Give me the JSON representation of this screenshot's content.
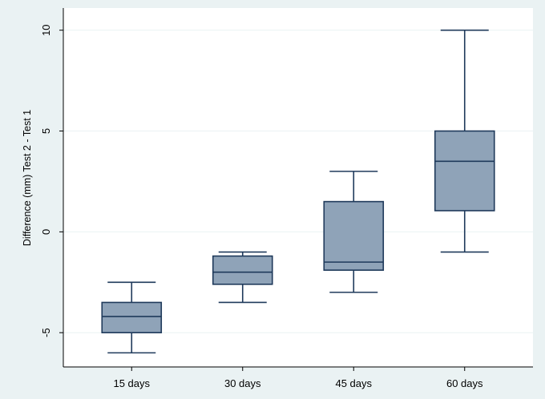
{
  "chart_data": {
    "type": "boxplot",
    "title": "",
    "xlabel": "",
    "ylabel": "Difference (mm) Test 2 - Test 1",
    "ylim": [
      -6.7,
      11.1
    ],
    "yticks": [
      -5,
      0,
      5,
      10
    ],
    "ytick_labels": [
      "-5",
      "0",
      "5",
      "10"
    ],
    "grid": "horizontal",
    "categories": [
      "15 days",
      "30 days",
      "45 days",
      "60 days"
    ],
    "boxes": [
      {
        "category": "15 days",
        "min": -6,
        "q1": -5,
        "median": -4.2,
        "q3": -3.5,
        "max": -2.5
      },
      {
        "category": "30 days",
        "min": -3.5,
        "q1": -2.6,
        "median": -2,
        "q3": -1.2,
        "max": -1
      },
      {
        "category": "45 days",
        "min": -3,
        "q1": -1.9,
        "median": -1.5,
        "q3": 1.5,
        "max": 3
      },
      {
        "category": "60 days",
        "min": -1,
        "q1": 1.05,
        "median": 3.5,
        "q3": 5,
        "max": 10
      }
    ],
    "colors": {
      "background": "#eaf2f3",
      "plot_area": "#ffffff",
      "box_fill": "#8fa3b8",
      "box_stroke": "#1f3a5b",
      "grid": "#eaf2f3",
      "axis": "#000000"
    }
  }
}
